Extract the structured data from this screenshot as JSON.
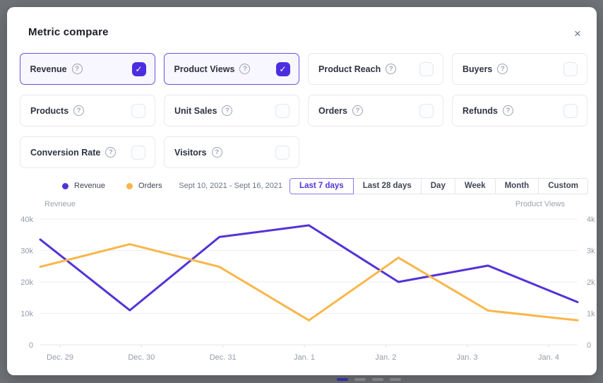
{
  "modal": {
    "title": "Metric compare"
  },
  "icons": {
    "close": "×",
    "check": "✓",
    "help": "?"
  },
  "metrics": [
    {
      "label": "Revenue",
      "checked": true
    },
    {
      "label": "Product Views",
      "checked": true
    },
    {
      "label": "Product Reach",
      "checked": false
    },
    {
      "label": "Buyers",
      "checked": false
    },
    {
      "label": "Products",
      "checked": false
    },
    {
      "label": "Unit Sales",
      "checked": false
    },
    {
      "label": "Orders",
      "checked": false
    },
    {
      "label": "Refunds",
      "checked": false
    },
    {
      "label": "Conversion Rate",
      "checked": false
    },
    {
      "label": "Visitors",
      "checked": false
    }
  ],
  "legend": {
    "items": [
      {
        "label": "Revenue",
        "color": "#5433d6"
      },
      {
        "label": "Orders",
        "color": "#f9b64a"
      }
    ]
  },
  "date_range": "Sept 10, 2021 - Sept 16, 2021",
  "range_selector": {
    "options": [
      "Last 7 days",
      "Last 28 days",
      "Day",
      "Week",
      "Month",
      "Custom"
    ],
    "selected_index": 0
  },
  "chart_data": {
    "type": "line",
    "categories": [
      "Dec. 29",
      "Dec. 30",
      "Dec. 31",
      "Jan. 1",
      "Jan. 2",
      "Jan. 3",
      "Jan. 4"
    ],
    "series": [
      {
        "name": "Revenue",
        "color": "#5433d6",
        "axis": "left",
        "values": [
          33500,
          11000,
          34300,
          38000,
          20000,
          25200,
          13600
        ]
      },
      {
        "name": "Orders",
        "color": "#f9b64a",
        "axis": "left",
        "values": [
          24800,
          32000,
          24800,
          7800,
          27700,
          10900,
          7800
        ]
      }
    ],
    "left_axis": {
      "label": "Revneue",
      "ticks": [
        "40k",
        "30k",
        "20k",
        "10k",
        "0"
      ],
      "ylim": [
        0,
        40000
      ]
    },
    "right_axis": {
      "label": "Product Views",
      "ticks": [
        "4k",
        "3k",
        "2k",
        "1k",
        "0"
      ],
      "ylim": [
        0,
        4000
      ]
    },
    "grid": true,
    "legend_position": "top-left"
  },
  "background": {
    "pager_pills": [
      "active",
      "inactive",
      "inactive",
      "inactive"
    ]
  }
}
